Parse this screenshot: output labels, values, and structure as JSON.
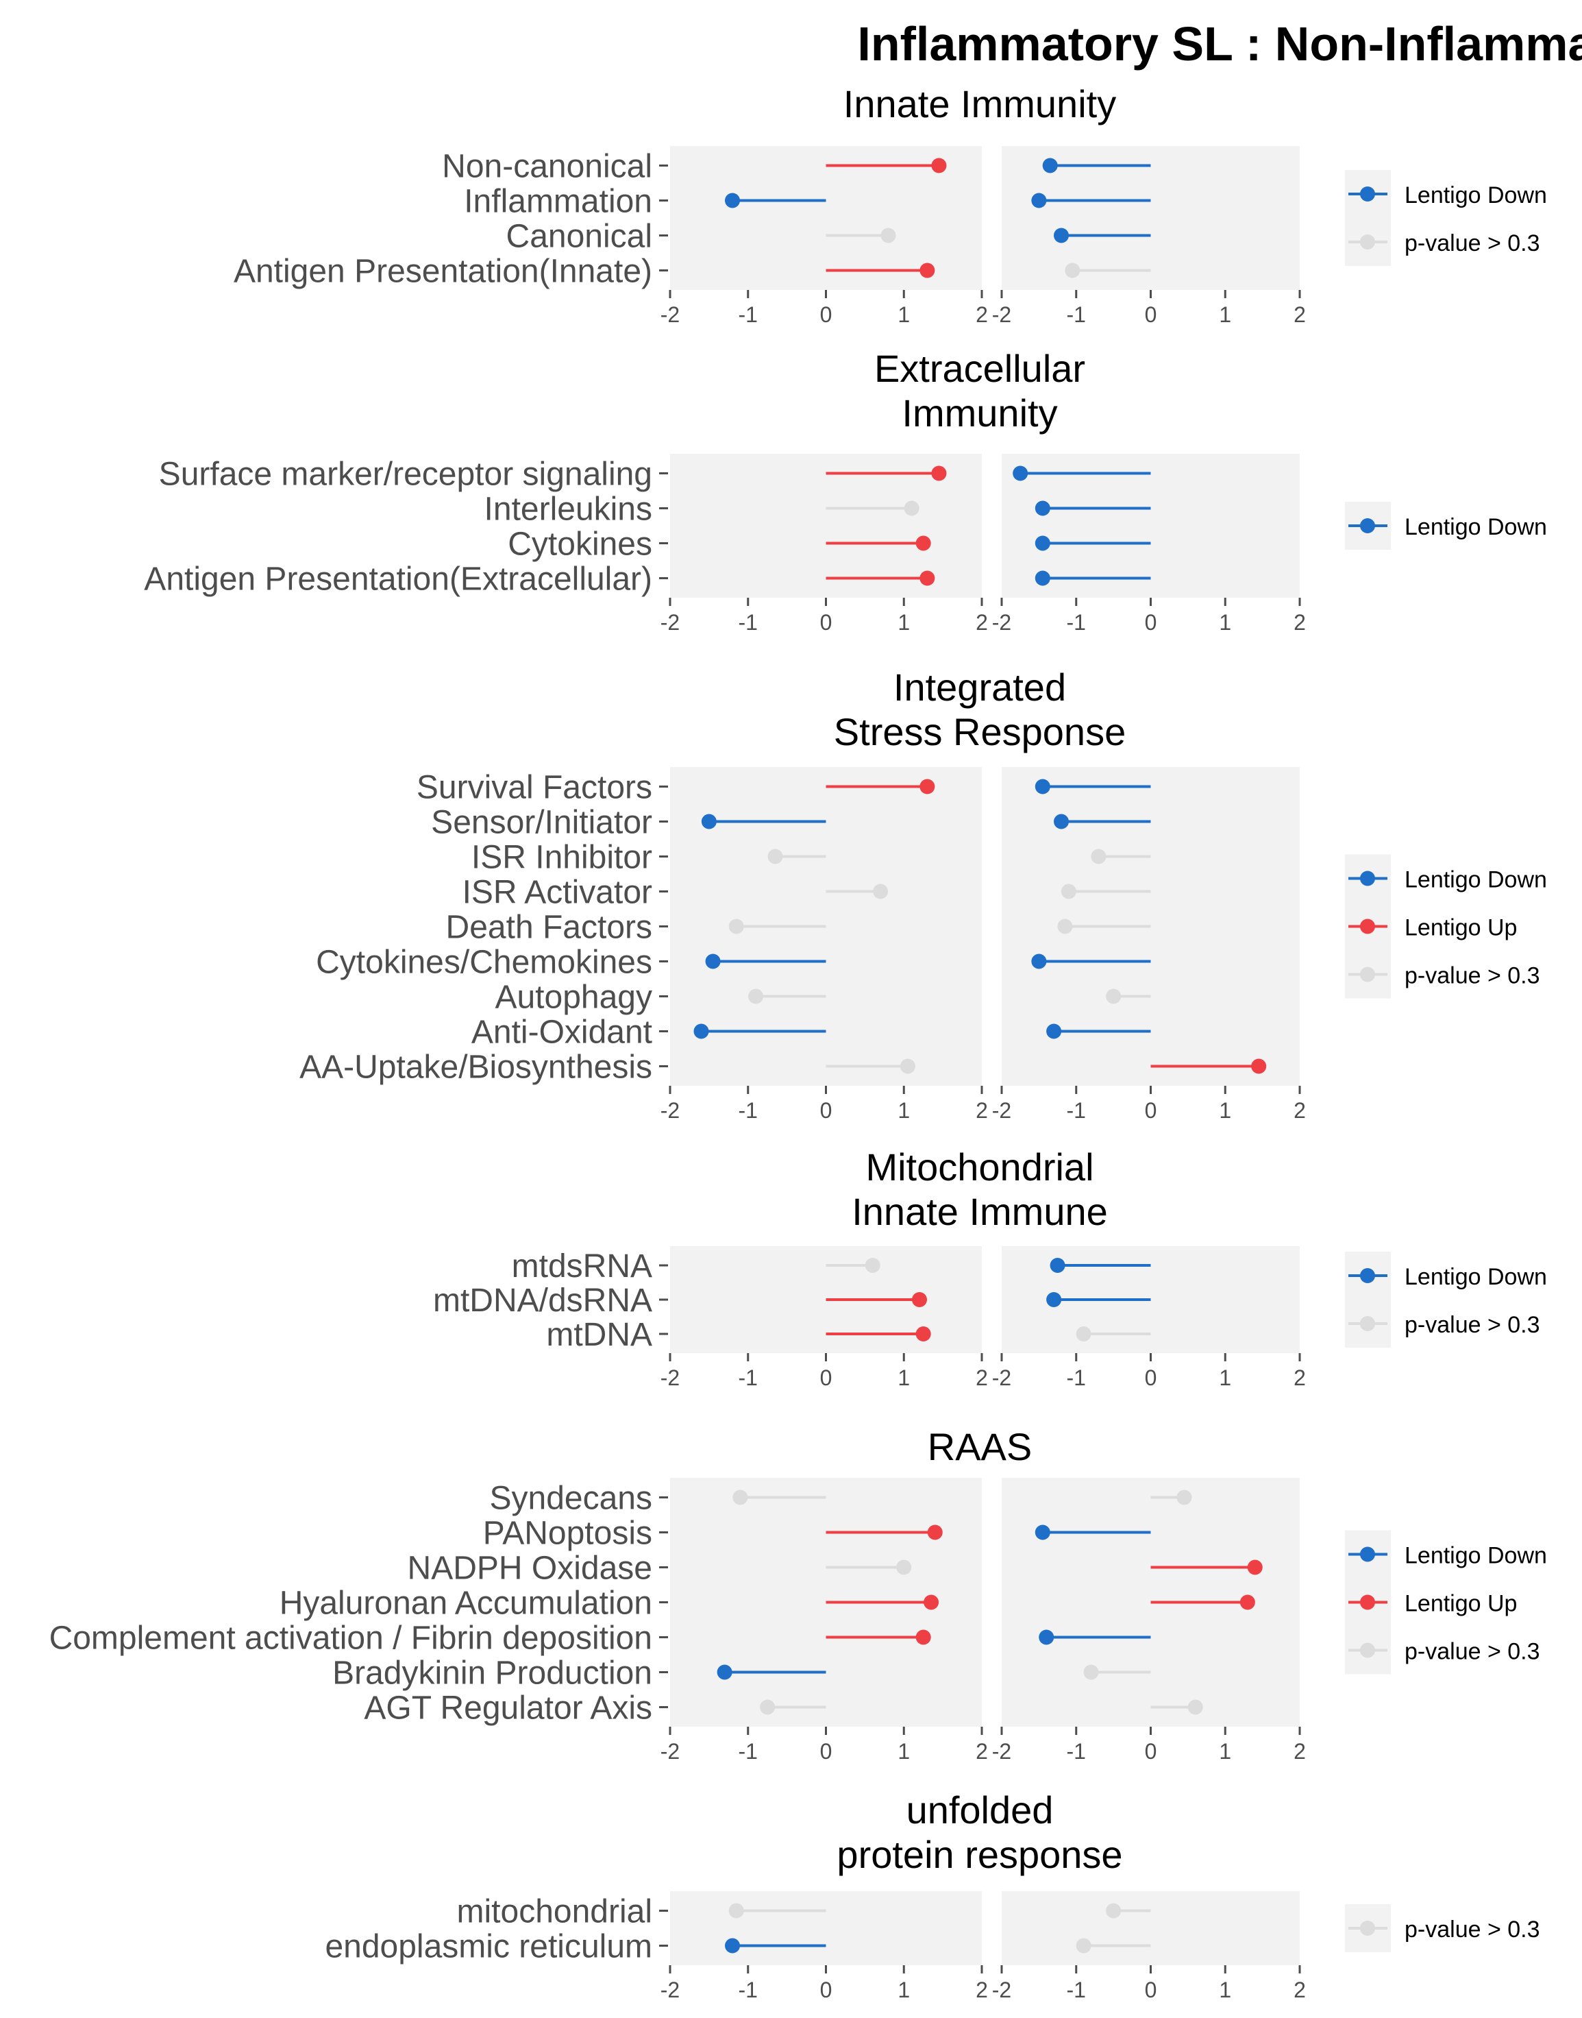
{
  "title": "Inflammatory SL : Non-Inflammatory SL",
  "legend_labels": {
    "down": "Lentigo Down",
    "up": "Lentigo Up",
    "ns": "p-value > 0.3"
  },
  "colors": {
    "down": "#1f6fc9",
    "up": "#ee3f44",
    "ns": "#dcdcdc",
    "panel_bg": "#f2f2f2",
    "text": "#4d4d4d",
    "tick": "#4d4d4d"
  },
  "chart_data": [
    {
      "type": "lollipop",
      "title_lines": [
        "Innate Immunity"
      ],
      "xlim": [
        -2,
        2
      ],
      "x_ticks": [
        -2,
        -1,
        0,
        1,
        2
      ],
      "legend": [
        "down",
        "ns"
      ],
      "categories": [
        "Non-canonical",
        "Inflammation",
        "Canonical",
        "Antigen Presentation(Innate)"
      ],
      "series": [
        {
          "values": [
            1.45,
            -1.2,
            0.8,
            1.3
          ],
          "status": [
            "up",
            "down",
            "ns",
            "up"
          ]
        },
        {
          "values": [
            -1.35,
            -1.5,
            -1.2,
            -1.05
          ],
          "status": [
            "down",
            "down",
            "down",
            "ns"
          ]
        }
      ]
    },
    {
      "type": "lollipop",
      "title_lines": [
        "Extracellular",
        "Immunity"
      ],
      "xlim": [
        -2,
        2
      ],
      "x_ticks": [
        -2,
        -1,
        0,
        1,
        2
      ],
      "legend": [
        "down"
      ],
      "categories": [
        "Surface marker/receptor signaling",
        "Interleukins",
        "Cytokines",
        "Antigen Presentation(Extracellular)"
      ],
      "series": [
        {
          "values": [
            1.45,
            1.1,
            1.25,
            1.3
          ],
          "status": [
            "up",
            "ns",
            "up",
            "up"
          ]
        },
        {
          "values": [
            -1.75,
            -1.45,
            -1.45,
            -1.45
          ],
          "status": [
            "down",
            "down",
            "down",
            "down"
          ]
        }
      ]
    },
    {
      "type": "lollipop",
      "title_lines": [
        "Integrated",
        "Stress Response"
      ],
      "xlim": [
        -2,
        2
      ],
      "x_ticks": [
        -2,
        -1,
        0,
        1,
        2
      ],
      "legend": [
        "down",
        "up",
        "ns"
      ],
      "categories": [
        "Survival Factors",
        "Sensor/Initiator",
        "ISR Inhibitor",
        "ISR Activator",
        "Death Factors",
        "Cytokines/Chemokines",
        "Autophagy",
        "Anti-Oxidant",
        "AA-Uptake/Biosynthesis"
      ],
      "series": [
        {
          "values": [
            1.3,
            -1.5,
            -0.65,
            0.7,
            -1.15,
            -1.45,
            -0.9,
            -1.6,
            1.05
          ],
          "status": [
            "up",
            "down",
            "ns",
            "ns",
            "ns",
            "down",
            "ns",
            "down",
            "ns"
          ]
        },
        {
          "values": [
            -1.45,
            -1.2,
            -0.7,
            -1.1,
            -1.15,
            -1.5,
            -0.5,
            -1.3,
            1.45
          ],
          "status": [
            "down",
            "down",
            "ns",
            "ns",
            "ns",
            "down",
            "ns",
            "down",
            "up"
          ]
        }
      ]
    },
    {
      "type": "lollipop",
      "title_lines": [
        "Mitochondrial",
        "Innate Immune"
      ],
      "xlim": [
        -2,
        2
      ],
      "x_ticks": [
        -2,
        -1,
        0,
        1,
        2
      ],
      "legend": [
        "down",
        "ns"
      ],
      "categories": [
        "mtdsRNA",
        "mtDNA/dsRNA",
        "mtDNA"
      ],
      "series": [
        {
          "values": [
            0.6,
            1.2,
            1.25
          ],
          "status": [
            "ns",
            "up",
            "up"
          ]
        },
        {
          "values": [
            -1.25,
            -1.3,
            -0.9
          ],
          "status": [
            "down",
            "down",
            "ns"
          ]
        }
      ]
    },
    {
      "type": "lollipop",
      "title_lines": [
        "RAAS"
      ],
      "xlim": [
        -2,
        2
      ],
      "x_ticks": [
        -2,
        -1,
        0,
        1,
        2
      ],
      "legend": [
        "down",
        "up",
        "ns"
      ],
      "categories": [
        "Syndecans",
        "PANoptosis",
        "NADPH Oxidase",
        "Hyaluronan Accumulation",
        "Complement activation / Fibrin deposition",
        "Bradykinin Production",
        "AGT Regulator Axis"
      ],
      "series": [
        {
          "values": [
            -1.1,
            1.4,
            1.0,
            1.35,
            1.25,
            -1.3,
            -0.75
          ],
          "status": [
            "ns",
            "up",
            "ns",
            "up",
            "up",
            "down",
            "ns"
          ]
        },
        {
          "values": [
            0.45,
            -1.45,
            1.4,
            1.3,
            -1.4,
            -0.8,
            0.6
          ],
          "status": [
            "ns",
            "down",
            "up",
            "up",
            "down",
            "ns",
            "ns"
          ]
        }
      ]
    },
    {
      "type": "lollipop",
      "title_lines": [
        "unfolded",
        "protein response"
      ],
      "xlim": [
        -2,
        2
      ],
      "x_ticks": [
        -2,
        -1,
        0,
        1,
        2
      ],
      "legend": [
        "ns"
      ],
      "categories": [
        "mitochondrial",
        "endoplasmic reticulum"
      ],
      "series": [
        {
          "values": [
            -1.15,
            -1.2
          ],
          "status": [
            "ns",
            "down"
          ]
        },
        {
          "values": [
            -0.5,
            -0.9
          ],
          "status": [
            "ns",
            "ns"
          ]
        }
      ]
    }
  ]
}
